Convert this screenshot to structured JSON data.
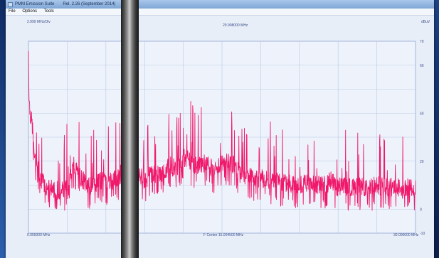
{
  "window": {
    "app_title": "PMM Emission Suite",
    "version": "Rel. 2.26 (September 2014)"
  },
  "menu": {
    "items": [
      "File",
      "Options",
      "Tools"
    ]
  },
  "plot": {
    "div_label": "2.999 MHz/Div",
    "marker_freq": "29.908000 MHz",
    "unit_label": "dBuV",
    "start_freq": "0.005000 MHz",
    "center_freq": "F Center 15.004500 MHz",
    "stop_freq": "30.000000 MHz"
  },
  "chart_data": {
    "type": "line",
    "x_range": [
      0.005,
      30.0
    ],
    "y_range": [
      -10,
      70
    ],
    "y_ticks": [
      70,
      60,
      40,
      20,
      0,
      -10
    ],
    "grid": true,
    "series": [
      {
        "color": "#f0186a",
        "x": [
          0.005,
          0.05,
          0.1,
          0.2,
          0.3,
          0.5,
          0.7,
          1.0,
          1.3,
          1.6,
          2.0,
          2.5,
          3.0,
          3.5,
          4.0,
          4.5,
          5.0,
          5.5,
          6.0,
          6.5,
          7.0,
          7.5,
          8.0,
          8.5,
          9.0,
          9.5,
          10.0,
          10.5,
          11.0,
          11.5,
          12.0,
          12.5,
          13.0,
          13.5,
          14.0,
          14.5,
          15.0,
          15.5,
          16.0,
          16.5,
          17.0,
          17.5,
          18.0,
          18.5,
          19.0,
          19.5,
          20.0,
          20.5,
          21.0,
          21.5,
          22.0,
          22.5,
          23.0,
          23.5,
          24.0,
          24.5,
          25.0,
          25.5,
          26.0,
          26.5,
          27.0,
          27.5,
          28.0,
          28.5,
          29.0,
          29.5,
          30.0
        ],
        "y": [
          66,
          48,
          42,
          38,
          35,
          20,
          18,
          12,
          10,
          9,
          8,
          8,
          10,
          18,
          14,
          10,
          9,
          12,
          11,
          12,
          13,
          18,
          16,
          14,
          12,
          15,
          14,
          16,
          18,
          17,
          22,
          20,
          18,
          19,
          18,
          16,
          19,
          20,
          18,
          14,
          14,
          13,
          13,
          12,
          12,
          11,
          11,
          10,
          10,
          11,
          11,
          10,
          10,
          12,
          9,
          10,
          9,
          10,
          9,
          9,
          10,
          9,
          9,
          10,
          8,
          9,
          8
        ]
      }
    ]
  }
}
